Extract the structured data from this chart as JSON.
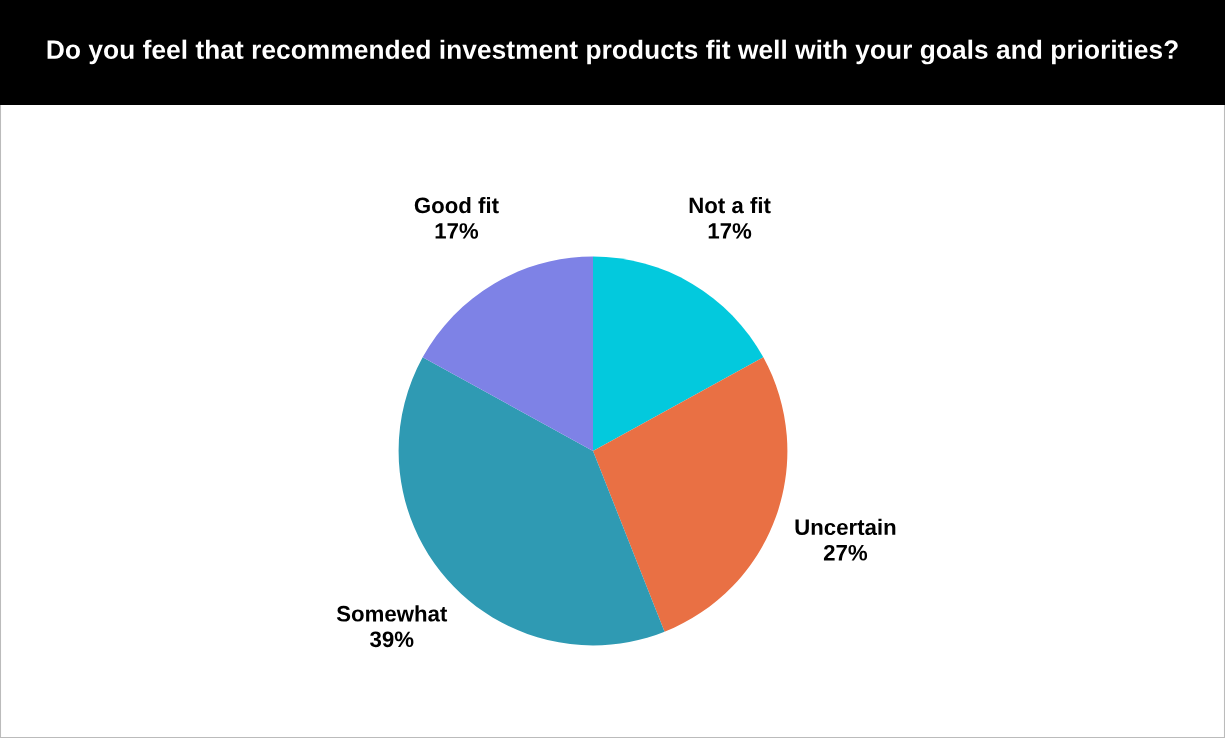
{
  "chart_data": {
    "type": "pie",
    "title": "Do you feel that recommended investment products fit well with your goals and priorities?",
    "categories": [
      "Not a fit",
      "Uncertain",
      "Somewhat",
      "Good fit"
    ],
    "values": [
      17,
      27,
      39,
      17
    ],
    "value_labels": [
      "17%",
      "27%",
      "39%",
      "17%"
    ],
    "colors": [
      "#03c9dd",
      "#e97044",
      "#2f9ab3",
      "#7e82e6"
    ]
  }
}
